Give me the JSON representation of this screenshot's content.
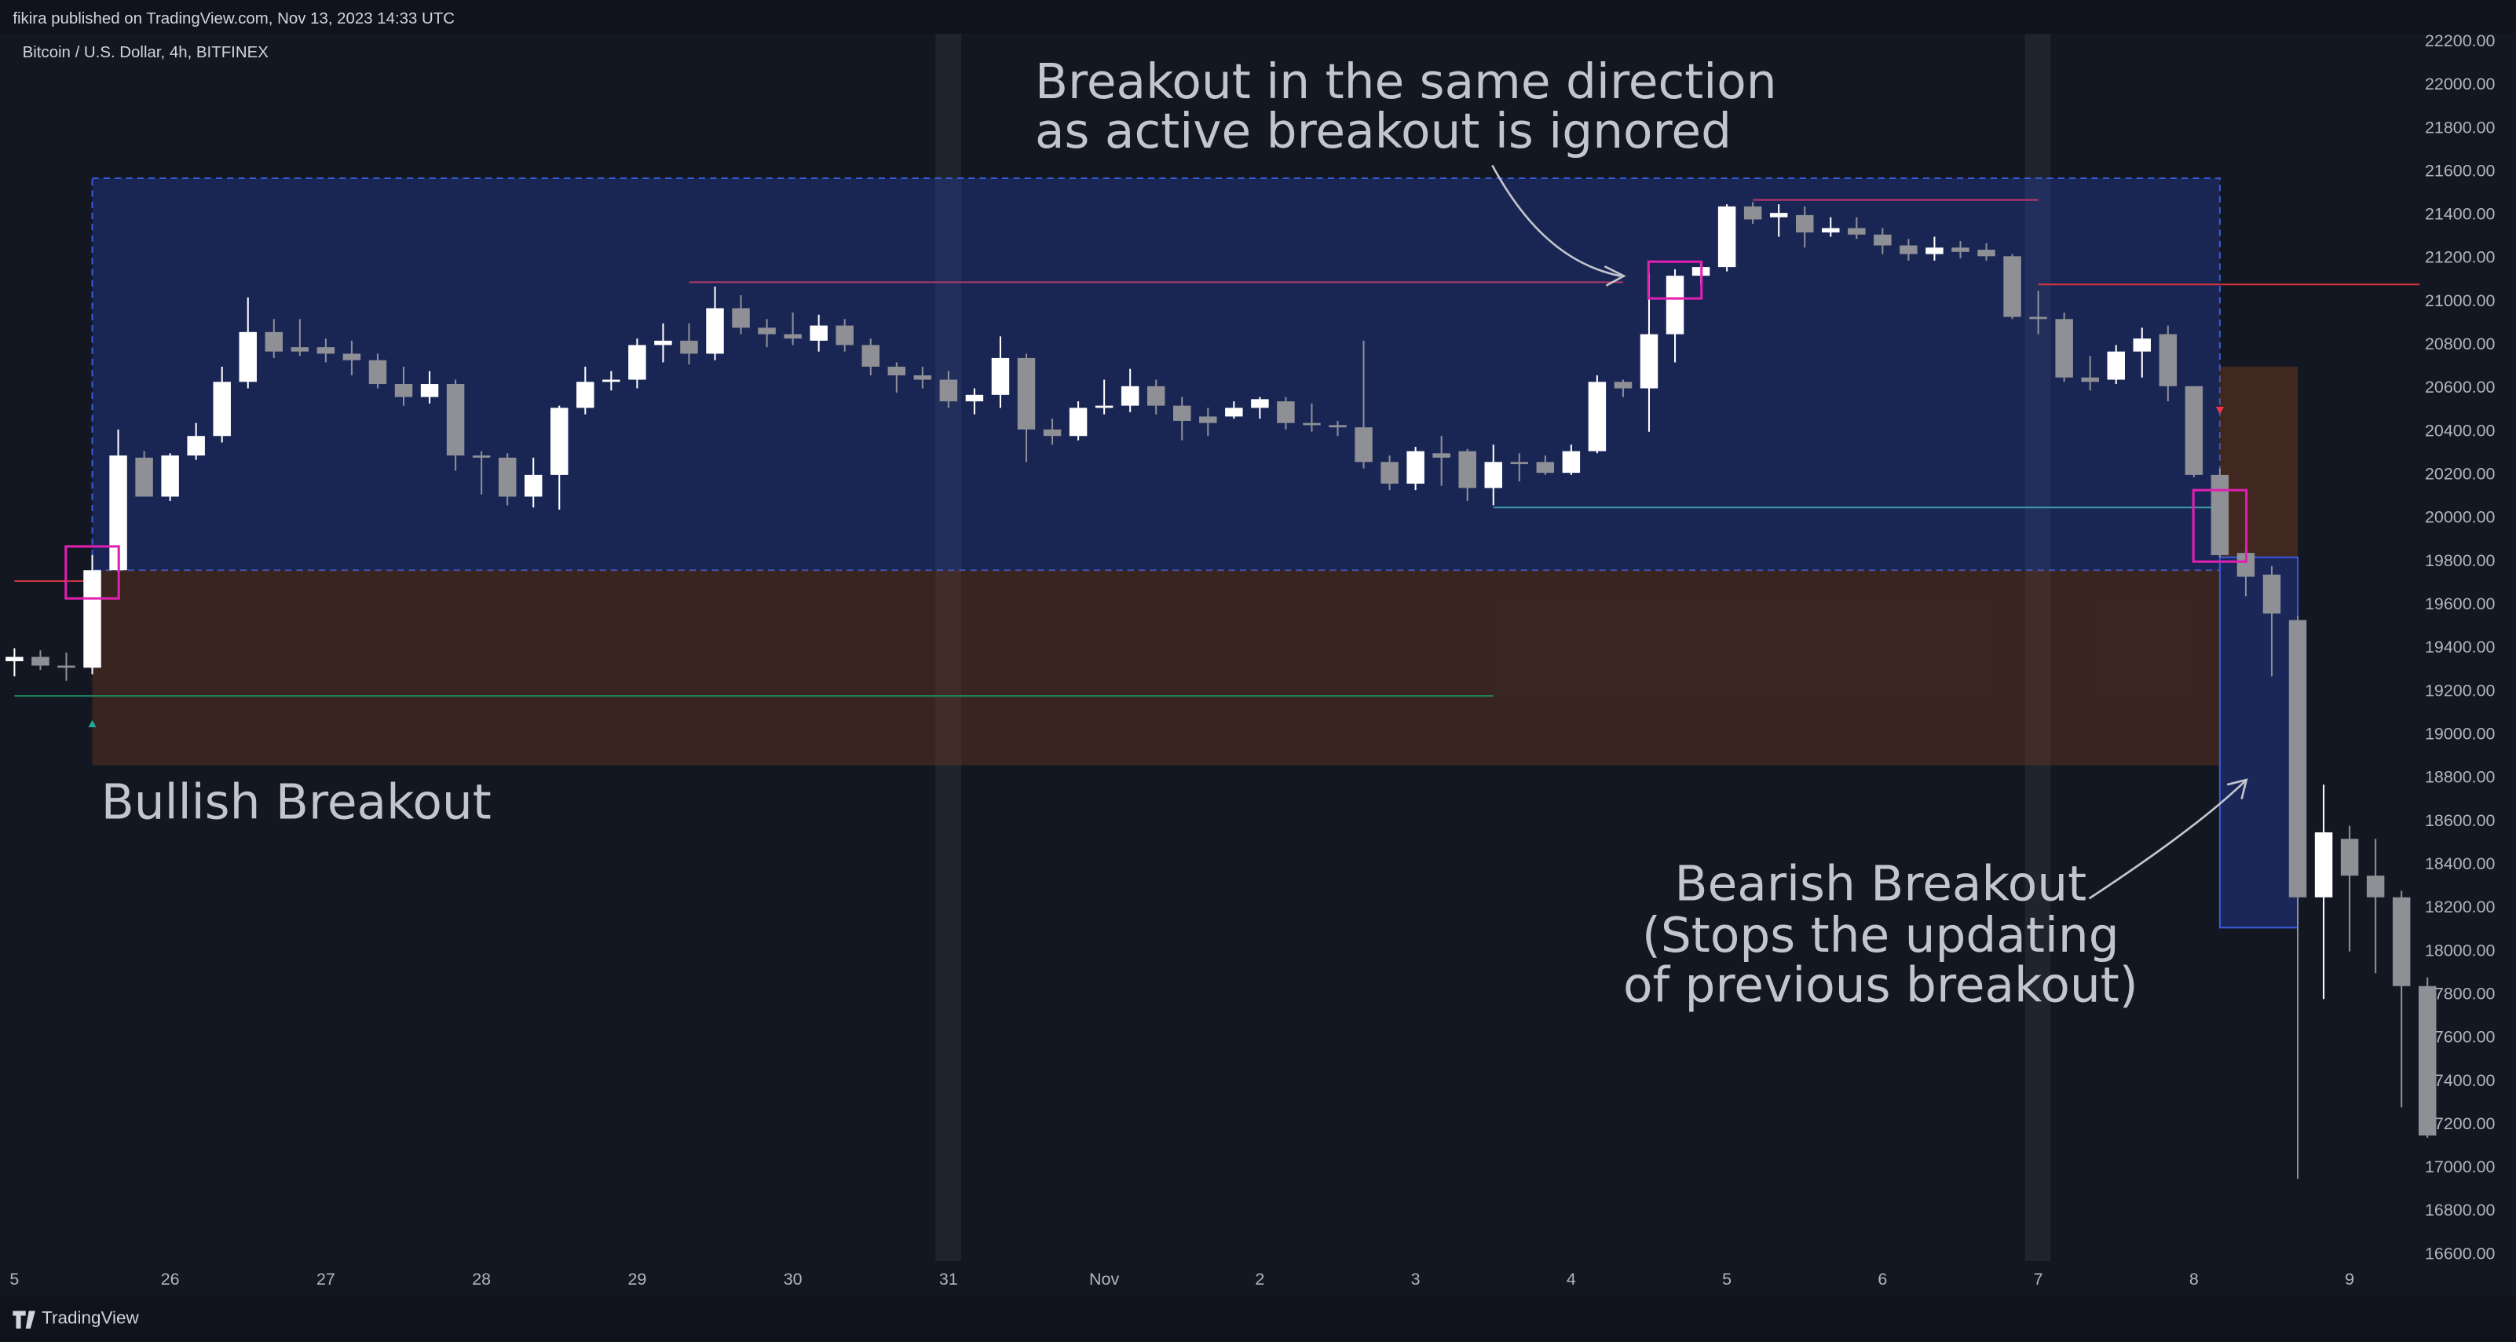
{
  "header": "fikira published on TradingView.com, Nov 13, 2023 14:33 UTC",
  "footer": "TradingView",
  "chart_data": {
    "type": "candlestick",
    "title": "Bitcoin / U.S. Dollar, 4h, BITFINEX",
    "categories": [
      "5",
      null,
      null,
      null,
      null,
      null,
      "26",
      null,
      null,
      null,
      null,
      null,
      "27",
      null,
      null,
      null,
      null,
      null,
      "28",
      null,
      null,
      null,
      null,
      null,
      "29",
      null,
      null,
      null,
      null,
      null,
      "30",
      null,
      null,
      null,
      null,
      null,
      "31",
      null,
      null,
      null,
      null,
      null,
      "Nov",
      null,
      null,
      null,
      null,
      null,
      "2",
      null,
      null,
      null,
      null,
      null,
      "3",
      null,
      null,
      null,
      null,
      null,
      "4",
      null,
      null,
      null,
      null,
      null,
      "5",
      null,
      null,
      null,
      null,
      null,
      "6",
      null,
      null,
      null,
      null,
      null,
      "7",
      null,
      null,
      null,
      null,
      null,
      "8",
      null,
      null,
      null,
      null,
      null,
      "9",
      null,
      null,
      null
    ],
    "open": [
      19340,
      19360,
      19320,
      19310,
      19760,
      20280,
      20100,
      20290,
      20380,
      20630,
      20860,
      20790,
      20790,
      20760,
      20730,
      20620,
      20560,
      20620,
      20290,
      20280,
      20100,
      20200,
      20510,
      20630,
      20640,
      20800,
      20820,
      20760,
      20970,
      20880,
      20850,
      20820,
      20890,
      20800,
      20700,
      20660,
      20640,
      20540,
      20570,
      20740,
      20410,
      20380,
      20510,
      20520,
      20610,
      20520,
      20470,
      20470,
      20510,
      20540,
      20440,
      20430,
      20420,
      20260,
      20160,
      20300,
      20310,
      20140,
      20260,
      20260,
      20210,
      20310,
      20630,
      20600,
      20850,
      21120,
      21160,
      21440,
      21390,
      21400,
      21320,
      21340,
      21310,
      21260,
      21220,
      21250,
      21240,
      21210,
      20930,
      20920,
      20650,
      20640,
      20770,
      20850,
      20610,
      20200,
      19840,
      19740,
      19530,
      18250,
      18520,
      18350,
      18250,
      17840
    ],
    "high": [
      19400,
      19390,
      19380,
      19830,
      20410,
      20310,
      20300,
      20440,
      20700,
      21020,
      20920,
      20920,
      20830,
      20820,
      20760,
      20700,
      20680,
      20640,
      20310,
      20300,
      20280,
      20520,
      20700,
      20680,
      20830,
      20900,
      20900,
      21070,
      21030,
      20920,
      20950,
      20940,
      20920,
      20830,
      20720,
      20700,
      20680,
      20600,
      20840,
      20760,
      20460,
      20540,
      20640,
      20690,
      20640,
      20560,
      20510,
      20540,
      20560,
      20560,
      20530,
      20450,
      20820,
      20290,
      20330,
      20380,
      20320,
      20340,
      20300,
      20290,
      20340,
      20660,
      20640,
      21130,
      21150,
      21180,
      21450,
      21460,
      21450,
      21440,
      21390,
      21390,
      21340,
      21290,
      21300,
      21280,
      21270,
      21220,
      21050,
      20950,
      20750,
      20800,
      20880,
      20890,
      20610,
      20230,
      19870,
      19780,
      19550,
      18770,
      18580,
      18520,
      18280,
      17880
    ],
    "low": [
      19270,
      19300,
      19250,
      19280,
      19750,
      20100,
      20080,
      20270,
      20350,
      20600,
      20740,
      20750,
      20720,
      20660,
      20600,
      20520,
      20530,
      20220,
      20110,
      20060,
      20050,
      20040,
      20480,
      20590,
      20600,
      20720,
      20710,
      20730,
      20850,
      20790,
      20800,
      20770,
      20770,
      20660,
      20580,
      20600,
      20510,
      20480,
      20510,
      20260,
      20340,
      20360,
      20480,
      20490,
      20480,
      20360,
      20380,
      20460,
      20460,
      20410,
      20400,
      20380,
      20230,
      20130,
      20130,
      20150,
      20080,
      20060,
      20170,
      20200,
      20200,
      20300,
      20560,
      20400,
      20720,
      21080,
      21140,
      21360,
      21300,
      21250,
      21300,
      21290,
      21220,
      21190,
      21190,
      21200,
      21190,
      20920,
      20850,
      20630,
      20590,
      20620,
      20650,
      20540,
      20190,
      19820,
      19640,
      19270,
      16950,
      17780,
      18000,
      17900,
      17280,
      17140
    ],
    "close": [
      19360,
      19320,
      19310,
      19760,
      20290,
      20100,
      20290,
      20380,
      20630,
      20860,
      20770,
      20770,
      20760,
      20730,
      20620,
      20560,
      20620,
      20290,
      20280,
      20100,
      20200,
      20510,
      20630,
      20640,
      20800,
      20820,
      20760,
      20970,
      20880,
      20850,
      20830,
      20890,
      20800,
      20700,
      20660,
      20640,
      20540,
      20570,
      20740,
      20410,
      20380,
      20510,
      20520,
      20610,
      20520,
      20450,
      20440,
      20510,
      20550,
      20440,
      20430,
      20420,
      20260,
      20160,
      20310,
      20280,
      20140,
      20260,
      20250,
      20210,
      20310,
      20630,
      20600,
      20850,
      21120,
      21160,
      21440,
      21380,
      21410,
      21320,
      21340,
      21310,
      21260,
      21220,
      21250,
      21230,
      21210,
      20930,
      20920,
      20650,
      20630,
      20770,
      20830,
      20610,
      20200,
      19830,
      19730,
      19560,
      18250,
      18550,
      18350,
      18250,
      17840,
      17150
    ],
    "colors": {
      "up": "#ffffff",
      "down": "#8e9096"
    },
    "ylim": [
      16570,
      22245
    ],
    "yticks": [
      {
        "value": 16600,
        "label": "16600.00"
      },
      {
        "value": 16800,
        "label": "16800.00"
      },
      {
        "value": 17000,
        "label": "17000.00"
      },
      {
        "value": 17200,
        "label": "17200.00"
      },
      {
        "value": 17400,
        "label": "17400.00"
      },
      {
        "value": 17600,
        "label": "17600.00"
      },
      {
        "value": 17800,
        "label": "17800.00"
      },
      {
        "value": 18000,
        "label": "18000.00"
      },
      {
        "value": 18200,
        "label": "18200.00"
      },
      {
        "value": 18400,
        "label": "18400.00"
      },
      {
        "value": 18600,
        "label": "18600.00"
      },
      {
        "value": 18800,
        "label": "18800.00"
      },
      {
        "value": 19000,
        "label": "19000.00"
      },
      {
        "value": 19200,
        "label": "19200.00"
      },
      {
        "value": 19400,
        "label": "19400.00"
      },
      {
        "value": 19600,
        "label": "19600.00"
      },
      {
        "value": 19800,
        "label": "19800.00"
      },
      {
        "value": 20000,
        "label": "20000.00"
      },
      {
        "value": 20200,
        "label": "20200.00"
      },
      {
        "value": 20400,
        "label": "20400.00"
      },
      {
        "value": 20600,
        "label": "20600.00"
      },
      {
        "value": 20800,
        "label": "20800.00"
      },
      {
        "value": 21000,
        "label": "21000.00"
      },
      {
        "value": 21200,
        "label": "21200.00"
      },
      {
        "value": 21400,
        "label": "21400.00"
      },
      {
        "value": 21600,
        "label": "21600.00"
      },
      {
        "value": 21800,
        "label": "21800.00"
      },
      {
        "value": 22000,
        "label": "22000.00"
      },
      {
        "value": 22200,
        "label": "22200.00"
      }
    ],
    "grid": false,
    "zones": [
      {
        "from": 3,
        "to": 85,
        "top": 21570,
        "bottom": 19760,
        "fill": "rgba(40,70,190,0.32)",
        "stroke": "#3a5ad8",
        "dashed": true
      },
      {
        "from": 3,
        "to": 85,
        "top": 19760,
        "bottom": 18860,
        "fill": "rgba(110,58,30,0.42)",
        "stroke": "none",
        "dashed": false
      },
      {
        "from": 85,
        "to": 88,
        "top": 20700,
        "bottom": 19820,
        "fill": "rgba(110,58,30,0.5)",
        "stroke": "none",
        "dashed": false
      },
      {
        "from": 85,
        "to": 88,
        "top": 19820,
        "bottom": 18110,
        "fill": "rgba(40,70,190,0.35)",
        "stroke": "#3a5ad8",
        "dashed": false
      }
    ],
    "levels": [
      {
        "from": 26,
        "to": 62,
        "price": 21090,
        "color": "#b03a6a"
      },
      {
        "from": 67,
        "to": 78,
        "price": 21470,
        "color": "#c2386e"
      },
      {
        "from": 78,
        "to": 92.7,
        "price": 21080,
        "color": "#d0343f"
      },
      {
        "from": 57,
        "to": 85,
        "price": 20050,
        "color": "#3e9aa6"
      },
      {
        "from": 0,
        "to": 57,
        "price": 19180,
        "color": "#1f8a5f"
      },
      {
        "from": 0,
        "to": 3,
        "price": 19710,
        "color": "#d0343f"
      }
    ],
    "markers": [
      {
        "at": 3,
        "price": 19050,
        "direction": "up",
        "color": "#26a69a"
      },
      {
        "at": 85,
        "price": 20500,
        "direction": "down",
        "color": "#f23645"
      }
    ],
    "highlights": [
      {
        "at": 3,
        "top": 19870,
        "bottom": 19630
      },
      {
        "at": 64,
        "top": 21185,
        "bottom": 21015
      },
      {
        "at": 85,
        "top": 20130,
        "bottom": 19800
      }
    ],
    "highlight_color": "#e020b0",
    "annotations": [
      {
        "lines": [
          "Breakout in the same direction",
          "as active breakout is ignored"
        ]
      },
      {
        "lines": [
          "Bullish Breakout"
        ]
      },
      {
        "lines": [
          "Bearish Breakout",
          "(Stops the updating",
          "of previous breakout)"
        ]
      }
    ]
  }
}
